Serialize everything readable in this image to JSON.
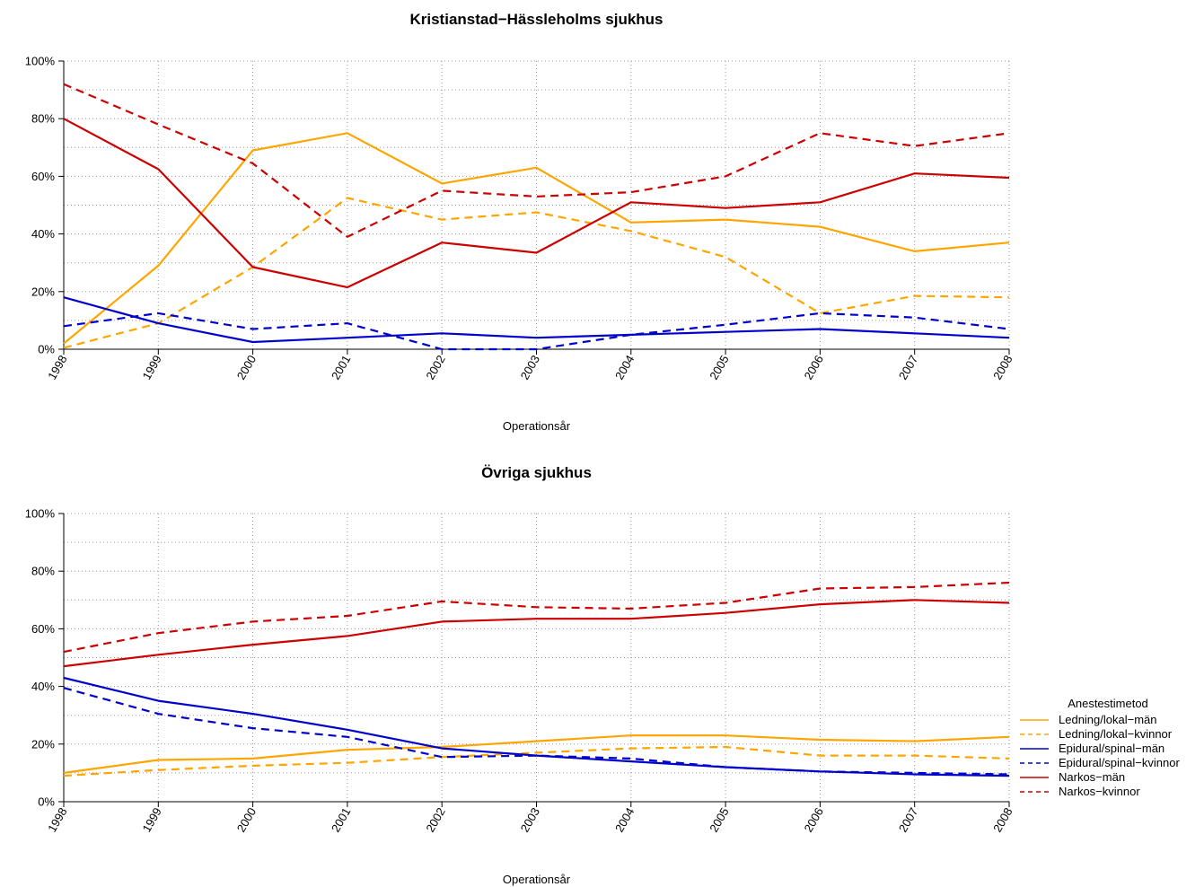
{
  "chart_data": [
    {
      "type": "line",
      "title": "Kristianstad−Hässleholms sjukhus",
      "xlabel": "Operationsår",
      "ylabel": "",
      "ylim": [
        0,
        100
      ],
      "y_ticks": [
        "0%",
        "20%",
        "40%",
        "60%",
        "80%",
        "100%"
      ],
      "grid": true,
      "x": [
        "1998",
        "1999",
        "2000",
        "2001",
        "2002",
        "2003",
        "2004",
        "2005",
        "2006",
        "2007",
        "2008"
      ],
      "series": [
        {
          "name": "Ledning/lokal−män",
          "color": "#FFA500",
          "dash": false,
          "values": [
            2,
            29,
            69,
            75,
            57.5,
            63,
            44,
            45,
            42.5,
            34,
            37
          ]
        },
        {
          "name": "Ledning/lokal−kvinnor",
          "color": "#FFA500",
          "dash": true,
          "values": [
            0.5,
            9,
            28.5,
            52.5,
            45,
            47.5,
            41,
            32,
            12.5,
            18.5,
            18
          ]
        },
        {
          "name": "Epidural/spinal−män",
          "color": "#0000CC",
          "dash": false,
          "values": [
            18,
            9,
            2.5,
            4,
            5.5,
            4,
            5,
            6,
            7,
            5.5,
            4
          ]
        },
        {
          "name": "Epidural/spinal−kvinnor",
          "color": "#0000CC",
          "dash": true,
          "values": [
            8,
            12.5,
            7,
            9,
            0,
            0,
            5,
            8.5,
            12.5,
            11,
            7
          ]
        },
        {
          "name": "Narkos−män",
          "color": "#CC0000",
          "dash": false,
          "values": [
            80,
            62.5,
            28.5,
            21.5,
            37,
            33.5,
            51,
            49,
            51,
            61,
            59.5
          ]
        },
        {
          "name": "Narkos−kvinnor",
          "color": "#CC0000",
          "dash": true,
          "values": [
            92,
            78,
            64.5,
            39,
            55,
            53,
            54.5,
            60,
            75,
            70.5,
            75
          ]
        }
      ]
    },
    {
      "type": "line",
      "title": "Övriga sjukhus",
      "xlabel": "Operationsår",
      "ylabel": "",
      "ylim": [
        0,
        100
      ],
      "y_ticks": [
        "0%",
        "20%",
        "40%",
        "60%",
        "80%",
        "100%"
      ],
      "grid": true,
      "x": [
        "1998",
        "1999",
        "2000",
        "2001",
        "2002",
        "2003",
        "2004",
        "2005",
        "2006",
        "2007",
        "2008"
      ],
      "series": [
        {
          "name": "Ledning/lokal−män",
          "color": "#FFA500",
          "dash": false,
          "values": [
            10,
            14.5,
            15,
            18,
            19,
            21,
            23,
            23,
            21.5,
            21,
            22.5
          ]
        },
        {
          "name": "Ledning/lokal−kvinnor",
          "color": "#FFA500",
          "dash": true,
          "values": [
            9,
            11,
            12.5,
            13.5,
            15.5,
            17,
            18.5,
            19,
            16,
            16,
            15
          ]
        },
        {
          "name": "Epidural/spinal−män",
          "color": "#0000CC",
          "dash": false,
          "values": [
            43,
            35,
            30.5,
            25,
            18.5,
            16,
            14,
            12,
            10.5,
            9.5,
            9
          ]
        },
        {
          "name": "Epidural/spinal−kvinnor",
          "color": "#0000CC",
          "dash": true,
          "values": [
            39.5,
            30.5,
            25.5,
            22.5,
            15.5,
            16,
            15,
            12,
            10.5,
            10,
            9.5
          ]
        },
        {
          "name": "Narkos−män",
          "color": "#CC0000",
          "dash": false,
          "values": [
            47,
            51,
            54.5,
            57.5,
            62.5,
            63.5,
            63.5,
            65.5,
            68.5,
            70,
            69
          ]
        },
        {
          "name": "Narkos−kvinnor",
          "color": "#CC0000",
          "dash": true,
          "values": [
            52,
            58.5,
            62.5,
            64.5,
            69.5,
            67.5,
            67,
            69,
            74,
            74.5,
            76
          ]
        }
      ],
      "legend": {
        "title": "Anestestimetod",
        "placement": "right"
      }
    }
  ]
}
